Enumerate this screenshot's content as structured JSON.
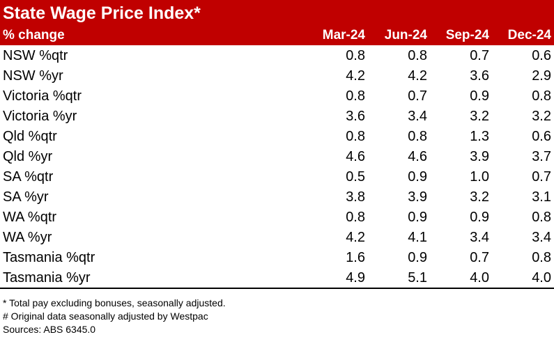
{
  "title": "State Wage Price Index*",
  "header": {
    "label": "% change",
    "columns": [
      "Mar-24",
      "Jun-24",
      "Sep-24",
      "Dec-24"
    ]
  },
  "rows": [
    {
      "label": "NSW %qtr",
      "values": [
        "0.8",
        "0.8",
        "0.7",
        "0.6"
      ]
    },
    {
      "label": "NSW %yr",
      "values": [
        "4.2",
        "4.2",
        "3.6",
        "2.9"
      ]
    },
    {
      "label": "Victoria %qtr",
      "values": [
        "0.8",
        "0.7",
        "0.9",
        "0.8"
      ]
    },
    {
      "label": "Victoria %yr",
      "values": [
        "3.6",
        "3.4",
        "3.2",
        "3.2"
      ]
    },
    {
      "label": "Qld %qtr",
      "values": [
        "0.8",
        "0.8",
        "1.3",
        "0.6"
      ]
    },
    {
      "label": "Qld %yr",
      "values": [
        "4.6",
        "4.6",
        "3.9",
        "3.7"
      ]
    },
    {
      "label": "SA %qtr",
      "values": [
        "0.5",
        "0.9",
        "1.0",
        "0.7"
      ]
    },
    {
      "label": "SA %yr",
      "values": [
        "3.8",
        "3.9",
        "3.2",
        "3.1"
      ]
    },
    {
      "label": "WA %qtr",
      "values": [
        "0.8",
        "0.9",
        "0.9",
        "0.8"
      ]
    },
    {
      "label": "WA %yr",
      "values": [
        "4.2",
        "4.1",
        "3.4",
        "3.4"
      ]
    },
    {
      "label": "Tasmania %qtr",
      "values": [
        "1.6",
        "0.9",
        "0.7",
        "0.8"
      ]
    },
    {
      "label": "Tasmania %yr",
      "values": [
        "4.9",
        "5.1",
        "4.0",
        "4.0"
      ]
    }
  ],
  "notes": [
    "* Total pay excluding bonuses, seasonally adjusted.",
    "# Original data seasonally adjusted by Westpac",
    "Sources: ABS 6345.0"
  ],
  "colors": {
    "header_bg": "#c00000",
    "header_text": "#ffffff"
  }
}
